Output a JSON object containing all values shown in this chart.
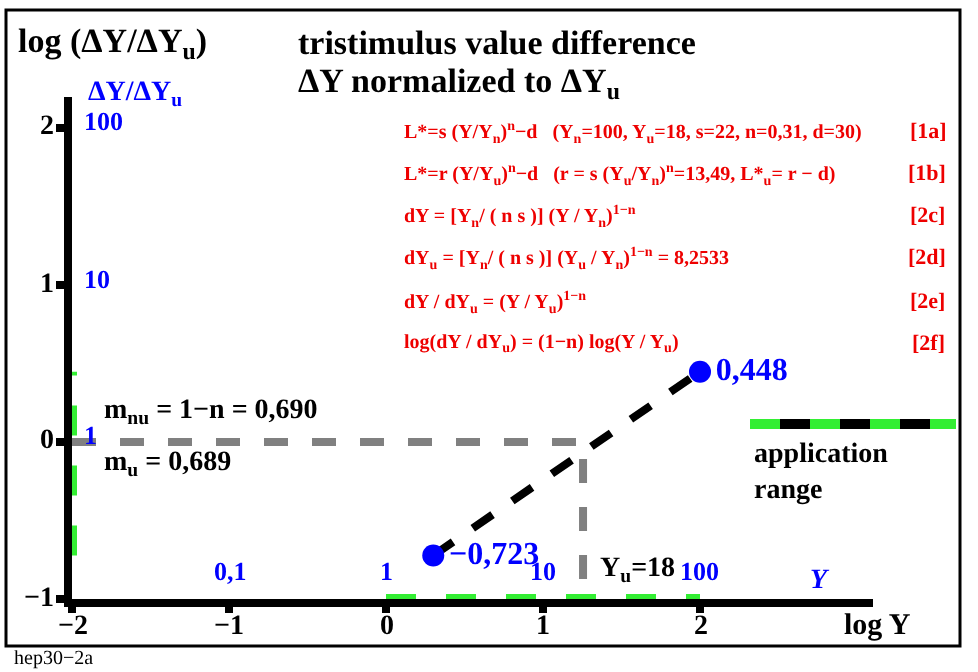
{
  "chart_data": {
    "type": "line",
    "title": "tristimulus value difference",
    "subtitle": "ΔY normalized to ΔY$_{u}$",
    "xlabel": "log Y",
    "ylabel": "log (ΔY/ΔY$_{u}$)",
    "xlim": [
      -2,
      3.1
    ],
    "ylim": [
      -1,
      2.2
    ],
    "xticks": [
      {
        "value": -2,
        "label": "−2"
      },
      {
        "value": -1,
        "label": "−1"
      },
      0,
      1,
      2
    ],
    "yticks": [
      {
        "value": -1,
        "label": "−1"
      },
      0,
      1,
      2
    ],
    "series": [
      {
        "color": "#808080",
        "line_style": "dashed",
        "marker": "none",
        "x": [
          -2,
          1.255,
          1.255
        ],
        "values": [
          0,
          0,
          -1
        ]
      },
      {
        "color": "#000000",
        "line_style": "dashed",
        "marker": "none",
        "x": [
          0.301,
          2
        ],
        "values": [
          -0.723,
          0.448
        ]
      },
      {
        "type": "scatter",
        "color": "#0000ff",
        "marker": "circle",
        "x": [
          0.301,
          2
        ],
        "values": [
          -0.723,
          0.448
        ],
        "value_labels": [
          "−0,723",
          "0,448"
        ]
      },
      {
        "name": "application range",
        "color": "#33ee33",
        "line_style": "dashed",
        "marker": "none",
        "x": [
          0,
          2
        ],
        "values": [
          -1,
          -1
        ]
      },
      {
        "color": "#33ee33",
        "line_style": "dashed",
        "marker": "none",
        "x": [
          -2,
          -2
        ],
        "values": [
          -0.723,
          0.448
        ]
      }
    ],
    "annotations": [
      "L*=s (Y/Y$_{n}$)$^{n}$−d   (Y$_{n}$=100, Y$_{u}$=18, s=22, n=0,31, d=30)",
      "L*=r (Y/Y$_{u}$)$^{n}$−d   (r = s (Y$_{u}$/Y$_{n}$)$^{n}$=13,49, L*$_{u}$= r − d)",
      "dY = [Y$_{n}$/ ( n s )] (Y / Y$_{n}$)$^{1−n}$",
      "dY$_{u}$ = [Y$_{n}$/ ( n s )] (Y$_{u}$ / Y$_{n}$)$^{1−n}$ = 8,2533",
      "dY / dY$_{u}$ = (Y / Y$_{u}$)$^{1−n}$",
      "log(dY / dY$_{u}$) = (1−n) log(Y / Y$_{u}$)",
      "[1a]",
      "[1b]",
      "[2c]",
      "[2d]",
      "[2e]",
      "[2f]",
      "m$_{nu}$ = 1−n = 0,690",
      "m$_{u}$ = 0,689",
      "hep30−2a",
      "Y",
      "ΔY/ΔY$_{u}$",
      "0,1",
      "1",
      "10",
      "100",
      "1",
      "10",
      "100",
      {
        "text": "Y$_{u}$=18",
        "x": 1.255,
        "y": -1
      }
    ]
  }
}
